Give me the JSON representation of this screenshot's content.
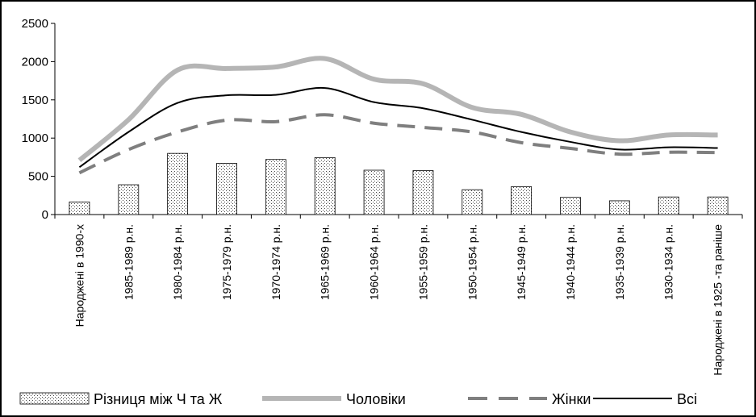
{
  "chart_data": {
    "type": "bar",
    "title": "",
    "xlabel": "",
    "ylabel": "",
    "ylim": [
      0,
      2500
    ],
    "yticks": [
      0,
      500,
      1000,
      1500,
      2000,
      2500
    ],
    "grid": false,
    "legend_position": "bottom",
    "categories": [
      "Народжені в 1990-х",
      "1985-1989 р.н.",
      "1980-1984 р.н.",
      "1975-1979 р.н.",
      "1970-1974 р.н.",
      "1965-1969 р.н.",
      "1960-1964 р.н.",
      "1955-1959 р.н.",
      "1950-1954 р.н.",
      "1945-1949 р.н.",
      "1940-1944 р.н.",
      "1935-1939 р.н.",
      "1930-1934 р.н.",
      "Народжені в 1925 -та раніше"
    ],
    "series": [
      {
        "name": "Різниця між Ч та Ж",
        "type": "bar",
        "pattern": "dots",
        "values": [
          165,
          390,
          800,
          670,
          720,
          745,
          580,
          575,
          325,
          365,
          225,
          180,
          230,
          230
        ]
      },
      {
        "name": "Чоловіки",
        "type": "line",
        "style": "thick",
        "color": "#b5b5b5",
        "values": [
          710,
          1240,
          1890,
          1910,
          1930,
          2040,
          1770,
          1710,
          1400,
          1310,
          1080,
          965,
          1040,
          1040
        ]
      },
      {
        "name": "Жінки",
        "type": "line",
        "style": "dashed",
        "color": "#7f7f7f",
        "values": [
          545,
          850,
          1080,
          1235,
          1215,
          1305,
          1195,
          1140,
          1080,
          940,
          865,
          790,
          815,
          810
        ]
      },
      {
        "name": "Всі",
        "type": "line",
        "style": "solid",
        "color": "#000000",
        "values": [
          620,
          1080,
          1460,
          1560,
          1565,
          1655,
          1470,
          1390,
          1240,
          1080,
          950,
          850,
          880,
          870
        ]
      }
    ]
  }
}
